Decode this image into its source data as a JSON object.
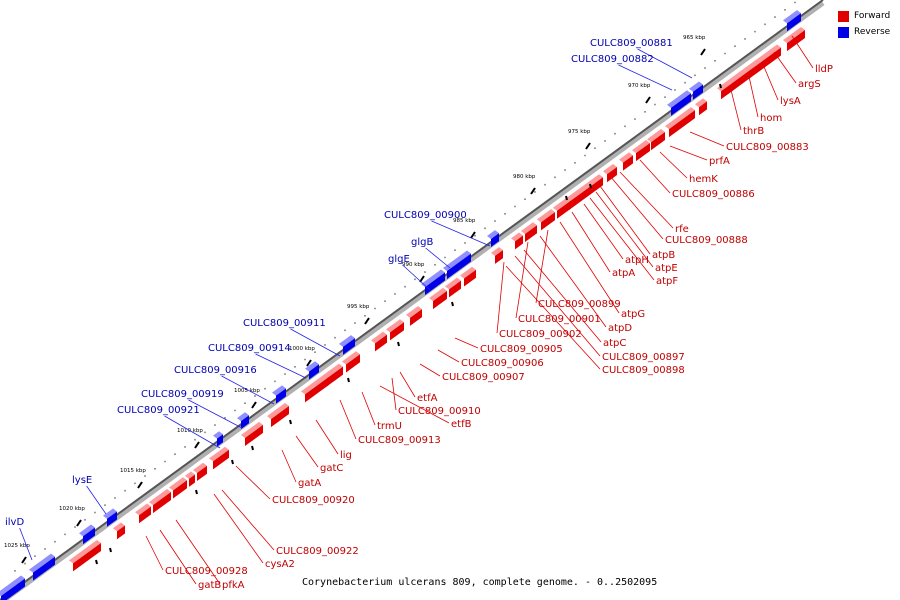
{
  "legend": [
    {
      "label": "Forward",
      "color": "#e00000"
    },
    {
      "label": "Reverse",
      "color": "#0000e8"
    }
  ],
  "caption": "Corynebacterium ulcerans 809, complete genome. - 0..2502095",
  "colors": {
    "forward": "#e00000",
    "reverse": "#0000e8",
    "backbone": "#888888",
    "forward_label": "#c00000",
    "reverse_label": "#0000b0"
  },
  "scale_ticks": [
    "965 kbp",
    "970 kbp",
    "975 kbp",
    "980 kbp",
    "985 kbp",
    "990 kbp",
    "995 kbp",
    "1000 kbp",
    "1005 kbp",
    "1010 kbp",
    "1015 kbp",
    "1020 kbp",
    "1025 kbp"
  ],
  "forward_genes": [
    "lldP",
    "argS",
    "lysA",
    "hom",
    "thrB",
    "CULC809_00883",
    "prfA",
    "hemK",
    "CULC809_00886",
    "rfe",
    "CULC809_00888",
    "atpB",
    "atpE",
    "atpF",
    "atpH",
    "atpA",
    "atpG",
    "CULC809_00899",
    "atpD",
    "CULC809_00901",
    "atpC",
    "CULC809_00902",
    "CULC809_00897",
    "CULC809_00898",
    "CULC809_00905",
    "CULC809_00906",
    "CULC809_00907",
    "etfA",
    "CULC809_00910",
    "etfB",
    "trmU",
    "CULC809_00913",
    "lig",
    "gatC",
    "gatA",
    "CULC809_00920",
    "CULC809_00922",
    "cysA2",
    "CULC809_00928",
    "gatB",
    "pfkA"
  ],
  "reverse_genes": [
    "CULC809_00881",
    "CULC809_00882",
    "CULC809_00900",
    "glgB",
    "glgE",
    "CULC809_00911",
    "CULC809_00914",
    "CULC809_00916",
    "CULC809_00919",
    "CULC809_00921",
    "lysE",
    "ilvD"
  ]
}
